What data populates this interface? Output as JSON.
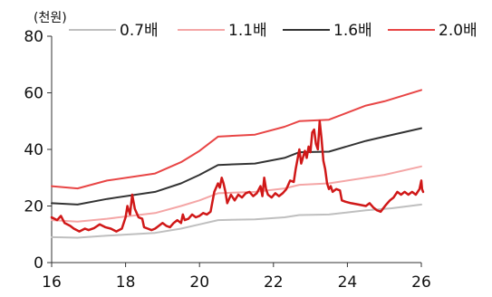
{
  "chart_data": {
    "type": "line",
    "unit_label": "(천원)",
    "xlabel": "",
    "ylabel": "",
    "xlim": [
      16,
      26
    ],
    "ylim": [
      0,
      80
    ],
    "x_ticks": [
      16,
      18,
      20,
      22,
      24,
      26
    ],
    "y_ticks": [
      0,
      20,
      40,
      60,
      80
    ],
    "grid": false,
    "legend_position": "top",
    "series": [
      {
        "name": "0.7배",
        "color": "#bfbfbf",
        "width": 2,
        "points": [
          [
            16,
            9
          ],
          [
            16.7,
            8.8
          ],
          [
            17.5,
            9.5
          ],
          [
            18.8,
            10.5
          ],
          [
            19.5,
            12
          ],
          [
            20,
            13.5
          ],
          [
            20.5,
            15
          ],
          [
            21.5,
            15.3
          ],
          [
            22.3,
            16
          ],
          [
            22.7,
            16.8
          ],
          [
            23.5,
            17
          ],
          [
            24.5,
            18.5
          ],
          [
            25.2,
            19.2
          ],
          [
            26,
            20.5
          ]
        ]
      },
      {
        "name": "1.1배",
        "color": "#f4a6a6",
        "width": 2,
        "points": [
          [
            16,
            15
          ],
          [
            16.7,
            14.5
          ],
          [
            17.5,
            15.5
          ],
          [
            18.8,
            17.5
          ],
          [
            19.5,
            20
          ],
          [
            20,
            22
          ],
          [
            20.5,
            24.5
          ],
          [
            21.5,
            25
          ],
          [
            22.3,
            26.2
          ],
          [
            22.7,
            27.5
          ],
          [
            23.5,
            28
          ],
          [
            24.5,
            30
          ],
          [
            25,
            31
          ],
          [
            26,
            34
          ]
        ]
      },
      {
        "name": "1.6배",
        "color": "#333333",
        "width": 2,
        "points": [
          [
            16,
            21
          ],
          [
            16.7,
            20.5
          ],
          [
            17.5,
            22.5
          ],
          [
            18.8,
            25
          ],
          [
            19.5,
            28
          ],
          [
            20,
            31
          ],
          [
            20.5,
            34.5
          ],
          [
            21.5,
            35
          ],
          [
            22.3,
            37
          ],
          [
            22.7,
            39
          ],
          [
            23.5,
            39.2
          ],
          [
            24.5,
            43
          ],
          [
            25,
            44.5
          ],
          [
            26,
            47.5
          ]
        ]
      },
      {
        "name": "2.0배",
        "color": "#e84545",
        "width": 2,
        "points": [
          [
            16,
            27
          ],
          [
            16.7,
            26.2
          ],
          [
            17.5,
            29
          ],
          [
            18.8,
            31.5
          ],
          [
            19.5,
            35.5
          ],
          [
            20,
            39.5
          ],
          [
            20.5,
            44.5
          ],
          [
            21.5,
            45.2
          ],
          [
            22.3,
            48
          ],
          [
            22.7,
            50
          ],
          [
            23.5,
            50.5
          ],
          [
            24.5,
            55.5
          ],
          [
            25,
            57
          ],
          [
            26,
            61
          ]
        ]
      },
      {
        "name": "",
        "color": "#d01818",
        "width": 2.5,
        "points": [
          [
            16,
            16
          ],
          [
            16.15,
            15
          ],
          [
            16.25,
            16.5
          ],
          [
            16.35,
            14
          ],
          [
            16.5,
            13
          ],
          [
            16.6,
            12
          ],
          [
            16.75,
            11
          ],
          [
            16.9,
            12
          ],
          [
            17,
            11.5
          ],
          [
            17.15,
            12.2
          ],
          [
            17.3,
            13.5
          ],
          [
            17.45,
            12.5
          ],
          [
            17.6,
            12
          ],
          [
            17.75,
            11
          ],
          [
            17.9,
            12
          ],
          [
            18,
            16
          ],
          [
            18.05,
            20
          ],
          [
            18.12,
            17
          ],
          [
            18.18,
            24
          ],
          [
            18.25,
            19
          ],
          [
            18.35,
            16
          ],
          [
            18.45,
            15.5
          ],
          [
            18.5,
            12.5
          ],
          [
            18.6,
            12
          ],
          [
            18.7,
            11.5
          ],
          [
            18.8,
            12
          ],
          [
            18.9,
            13
          ],
          [
            19,
            14
          ],
          [
            19.1,
            13
          ],
          [
            19.2,
            12.5
          ],
          [
            19.3,
            14
          ],
          [
            19.4,
            15
          ],
          [
            19.5,
            14
          ],
          [
            19.55,
            17
          ],
          [
            19.6,
            15
          ],
          [
            19.7,
            15.5
          ],
          [
            19.8,
            17
          ],
          [
            19.9,
            16
          ],
          [
            20,
            16.5
          ],
          [
            20.1,
            17.5
          ],
          [
            20.2,
            17
          ],
          [
            20.3,
            18
          ],
          [
            20.4,
            25
          ],
          [
            20.5,
            28
          ],
          [
            20.55,
            26.5
          ],
          [
            20.6,
            30
          ],
          [
            20.65,
            28
          ],
          [
            20.7,
            25
          ],
          [
            20.75,
            21
          ],
          [
            20.85,
            24
          ],
          [
            20.95,
            22
          ],
          [
            21.05,
            24
          ],
          [
            21.15,
            23
          ],
          [
            21.25,
            24.5
          ],
          [
            21.35,
            25
          ],
          [
            21.45,
            23.5
          ],
          [
            21.55,
            24.5
          ],
          [
            21.65,
            27
          ],
          [
            21.7,
            23.5
          ],
          [
            21.75,
            30
          ],
          [
            21.8,
            26
          ],
          [
            21.85,
            24
          ],
          [
            21.95,
            23
          ],
          [
            22.05,
            24.5
          ],
          [
            22.15,
            23.5
          ],
          [
            22.25,
            24.5
          ],
          [
            22.35,
            26
          ],
          [
            22.45,
            29
          ],
          [
            22.55,
            28.5
          ],
          [
            22.6,
            33
          ],
          [
            22.7,
            40
          ],
          [
            22.75,
            35
          ],
          [
            22.85,
            39.5
          ],
          [
            22.9,
            37
          ],
          [
            22.95,
            41
          ],
          [
            23,
            39
          ],
          [
            23.05,
            46
          ],
          [
            23.1,
            47
          ],
          [
            23.15,
            42
          ],
          [
            23.2,
            40
          ],
          [
            23.25,
            50
          ],
          [
            23.3,
            44
          ],
          [
            23.35,
            36
          ],
          [
            23.4,
            33
          ],
          [
            23.45,
            28
          ],
          [
            23.5,
            26
          ],
          [
            23.55,
            27
          ],
          [
            23.6,
            25
          ],
          [
            23.7,
            26
          ],
          [
            23.8,
            25.5
          ],
          [
            23.85,
            22
          ],
          [
            23.95,
            21.5
          ],
          [
            24.1,
            21
          ],
          [
            24.3,
            20.5
          ],
          [
            24.5,
            20
          ],
          [
            24.6,
            21
          ],
          [
            24.7,
            19.5
          ],
          [
            24.8,
            18.5
          ],
          [
            24.9,
            18
          ],
          [
            25.05,
            20.5
          ],
          [
            25.15,
            22
          ],
          [
            25.25,
            23
          ],
          [
            25.35,
            25
          ],
          [
            25.45,
            24
          ],
          [
            25.55,
            25
          ],
          [
            25.65,
            24
          ],
          [
            25.75,
            25
          ],
          [
            25.85,
            24
          ],
          [
            25.95,
            26
          ],
          [
            26,
            29
          ],
          [
            26.02,
            26
          ],
          [
            26.05,
            25
          ]
        ]
      }
    ]
  }
}
